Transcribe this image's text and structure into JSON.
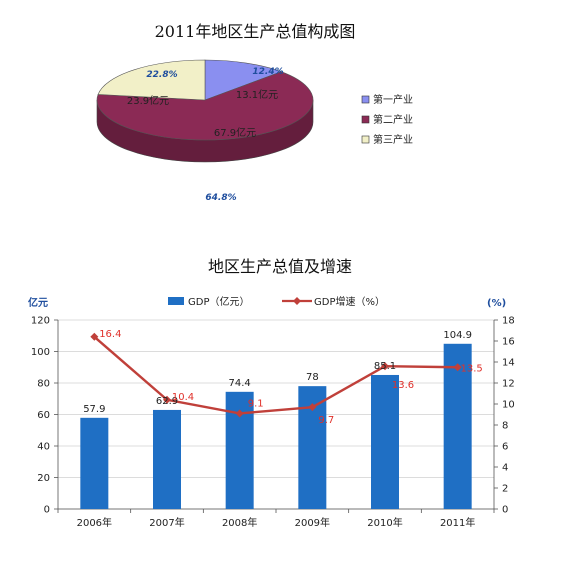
{
  "chart_data": [
    {
      "type": "pie",
      "title": "2011年地区生产总值构成图",
      "slices": [
        {
          "name": "第一产业",
          "value": 13.1,
          "value_label": "13.1亿元",
          "percent_label": "12.4%",
          "color": "#8a8ff0"
        },
        {
          "name": "第二产业",
          "value": 67.9,
          "value_label": "67.9亿元",
          "percent_label": "64.8%",
          "color": "#8b2a55"
        },
        {
          "name": "第三产业",
          "value": 23.9,
          "value_label": "23.9亿元",
          "percent_label": "22.8%",
          "color": "#f2f0c8"
        }
      ],
      "legend_position": "right"
    },
    {
      "type": "bar",
      "title": "地区生产总值及增速",
      "categories": [
        "2006年",
        "2007年",
        "2008年",
        "2009年",
        "2010年",
        "2011年"
      ],
      "series": [
        {
          "name": "GDP（亿元）",
          "type": "bar",
          "axis": "left",
          "values": [
            57.9,
            62.9,
            74.4,
            78,
            85.1,
            104.9
          ],
          "labels": [
            "57.9",
            "62.9",
            "74.4",
            "78",
            "85.1",
            "104.9"
          ],
          "color": "#1f6fc4"
        },
        {
          "name": "GDP增速（%）",
          "type": "line",
          "axis": "right",
          "values": [
            16.4,
            10.4,
            9.1,
            9.7,
            13.6,
            13.5
          ],
          "labels": [
            "16.4",
            "10.4",
            "9.1",
            "9.7",
            "13.6",
            "13.5"
          ],
          "color": "#c0403a"
        }
      ],
      "ylabel_left": "亿元",
      "ylabel_right": "(%)",
      "ylim_left": [
        0,
        120
      ],
      "yticks_left": [
        0,
        20,
        40,
        60,
        80,
        100,
        120
      ],
      "ylim_right": [
        0,
        18
      ],
      "yticks_right": [
        0,
        2,
        4,
        6,
        8,
        10,
        12,
        14,
        16,
        18
      ],
      "grid": true,
      "legend_position": "top"
    }
  ]
}
